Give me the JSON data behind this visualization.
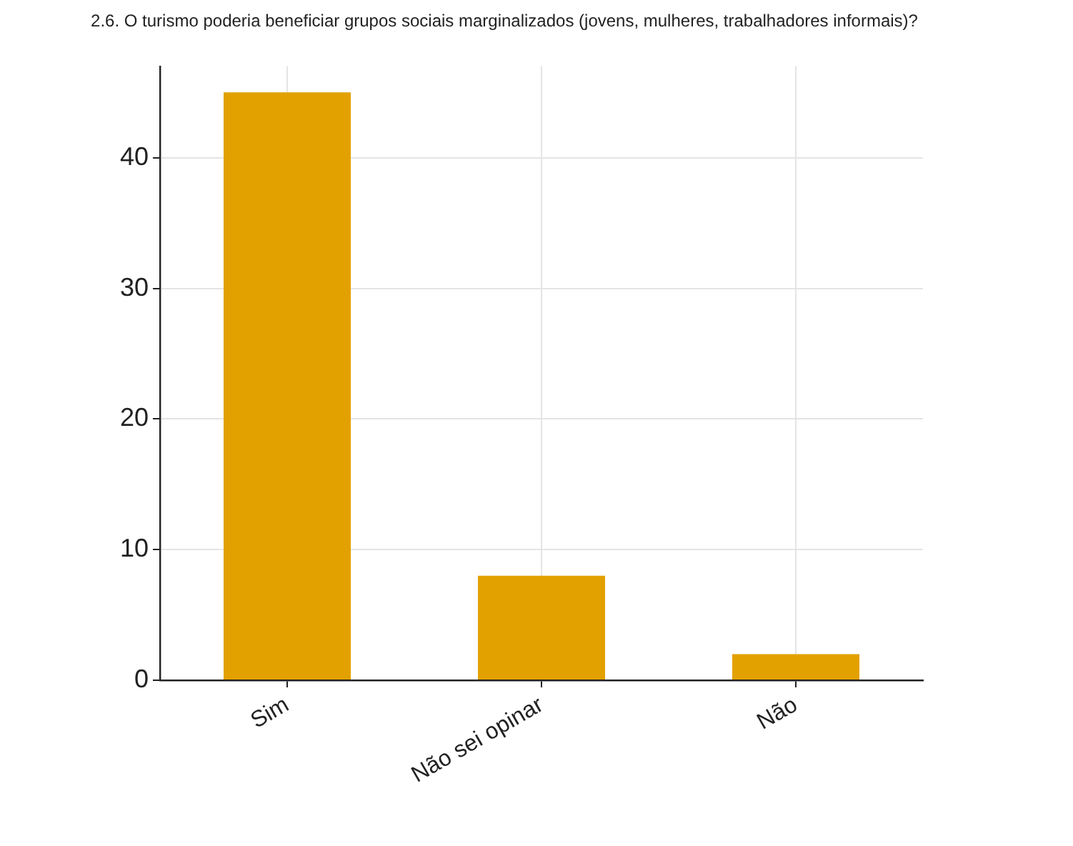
{
  "chart_data": {
    "type": "bar",
    "title": "2.6. O turismo poderia beneficiar grupos sociais marginalizados (jovens, mulheres, trabalhadores informais)?",
    "categories": [
      "Sim",
      "Não sei opinar",
      "Não"
    ],
    "values": [
      45,
      8,
      2
    ],
    "color": "#e3a100",
    "ylim": [
      0,
      47
    ],
    "yticks": [
      0,
      10,
      20,
      30,
      40
    ],
    "grid": true
  }
}
